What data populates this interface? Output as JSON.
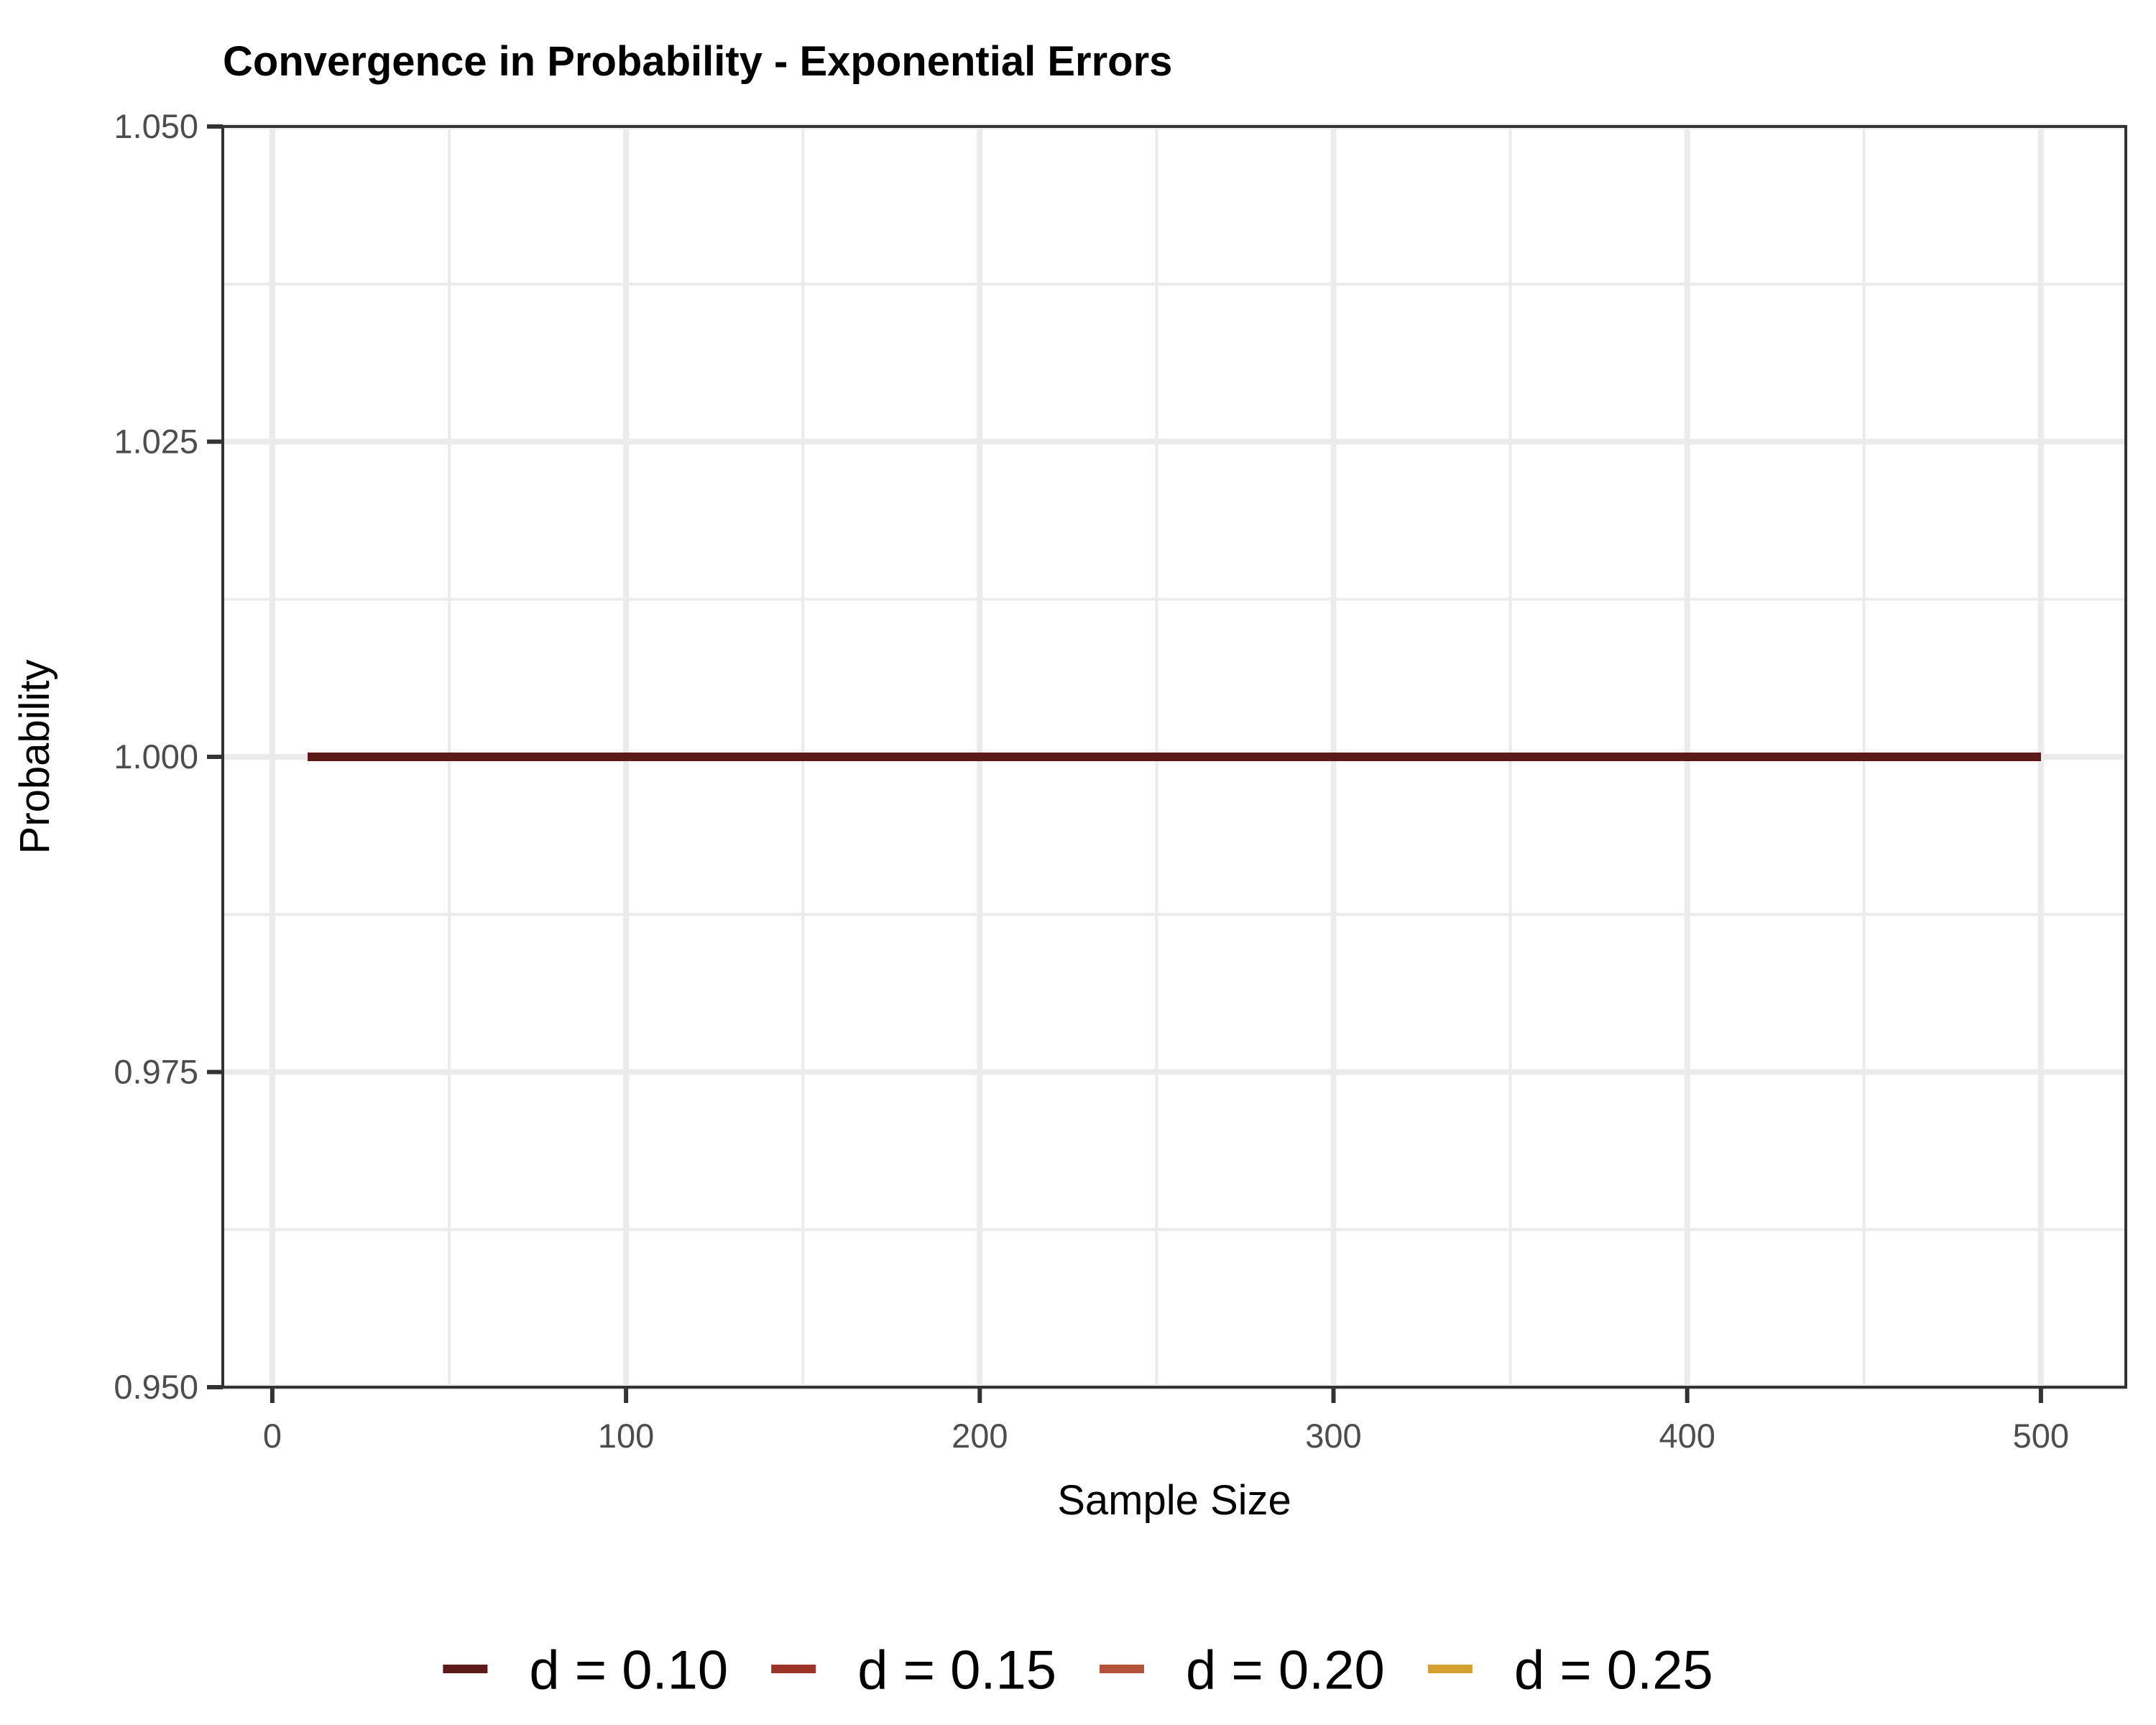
{
  "chart_data": {
    "type": "line",
    "title": "Convergence in Probability - Exponential Errors",
    "xlabel": "Sample Size",
    "ylabel": "Probability",
    "xlim": [
      -14,
      524
    ],
    "ylim": [
      0.95,
      1.05
    ],
    "x_ticks": [
      0,
      100,
      200,
      300,
      400,
      500
    ],
    "x_tick_labels": [
      "0",
      "100",
      "200",
      "300",
      "400",
      "500"
    ],
    "x_minor_ticks": [
      50,
      150,
      250,
      350,
      450
    ],
    "y_ticks": [
      0.95,
      0.975,
      1.0,
      1.025,
      1.05
    ],
    "y_tick_labels": [
      "0.950",
      "0.975",
      "1.000",
      "1.025",
      "1.050"
    ],
    "y_minor_ticks": [
      0.9625,
      0.9875,
      1.0125,
      1.0375
    ],
    "grid": true,
    "legend_position": "bottom",
    "series": [
      {
        "name": "d = 0.10",
        "color": "#5b1a18",
        "x": [
          10,
          500
        ],
        "y": [
          1.0,
          1.0
        ]
      },
      {
        "name": "d = 0.15",
        "color": "#9c3326",
        "x": [
          10,
          500
        ],
        "y": [
          1.0,
          1.0
        ]
      },
      {
        "name": "d = 0.20",
        "color": "#b5533a",
        "x": [
          10,
          500
        ],
        "y": [
          1.0,
          1.0
        ]
      },
      {
        "name": "d = 0.25",
        "color": "#d4a030",
        "x": [
          10,
          500
        ],
        "y": [
          1.0,
          1.0
        ]
      }
    ]
  }
}
